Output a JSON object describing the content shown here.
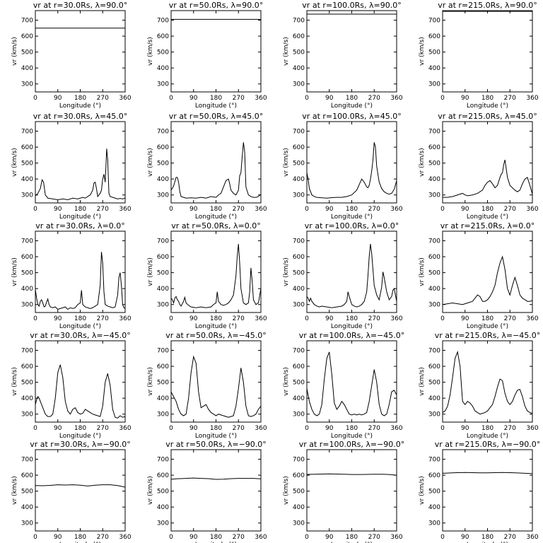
{
  "figure": {
    "xlabel": "Longitude (°)",
    "ylabel": "vr (km/s)",
    "xlim": [
      0,
      360
    ],
    "ylim": [
      250,
      760
    ],
    "xticks": [
      0,
      90,
      180,
      270,
      360
    ],
    "yticks": [
      300,
      400,
      500,
      600,
      700
    ],
    "grid": false,
    "line_color": "#000000"
  },
  "chart_data": [
    {
      "type": "line",
      "title": "vr at r=30.0Rs, λ=90.0°",
      "xlabel": "Longitude (°)",
      "ylabel": "vr (km/s)",
      "xlim": [
        0,
        360
      ],
      "ylim": [
        250,
        760
      ],
      "x": [
        0,
        360
      ],
      "y": [
        650,
        650
      ]
    },
    {
      "type": "line",
      "title": "vr at r=50.0Rs, λ=90.0°",
      "xlabel": "Longitude (°)",
      "ylabel": "vr (km/s)",
      "xlim": [
        0,
        360
      ],
      "ylim": [
        250,
        760
      ],
      "x": [
        0,
        360
      ],
      "y": [
        705,
        705
      ]
    },
    {
      "type": "line",
      "title": "vr at r=100.0Rs, λ=90.0°",
      "xlabel": "Longitude (°)",
      "ylabel": "vr (km/s)",
      "xlim": [
        0,
        360
      ],
      "ylim": [
        250,
        760
      ],
      "x": [
        0,
        360
      ],
      "y": [
        738,
        738
      ]
    },
    {
      "type": "line",
      "title": "vr at r=215.0Rs, λ=90.0°",
      "xlabel": "Longitude (°)",
      "ylabel": "vr (km/s)",
      "xlim": [
        0,
        360
      ],
      "ylim": [
        250,
        760
      ],
      "x": [
        0,
        360
      ],
      "y": [
        755,
        755
      ]
    },
    {
      "type": "line",
      "title": "vr at r=30.0Rs, λ=45.0°",
      "xlabel": "Longitude (°)",
      "ylabel": "vr (km/s)",
      "xlim": [
        0,
        360
      ],
      "ylim": [
        250,
        760
      ],
      "x": [
        0,
        10,
        20,
        27,
        33,
        40,
        50,
        70,
        90,
        110,
        130,
        150,
        170,
        190,
        200,
        210,
        220,
        230,
        235,
        240,
        245,
        250,
        255,
        260,
        265,
        270,
        275,
        280,
        283,
        286,
        290,
        295,
        300,
        310,
        320,
        330,
        340,
        350,
        360
      ],
      "y": [
        295,
        310,
        340,
        395,
        380,
        300,
        280,
        275,
        270,
        275,
        270,
        280,
        275,
        285,
        280,
        290,
        300,
        330,
        375,
        380,
        340,
        290,
        300,
        310,
        330,
        400,
        430,
        380,
        480,
        590,
        520,
        310,
        290,
        285,
        280,
        275,
        278,
        275,
        280
      ]
    },
    {
      "type": "line",
      "title": "vr at r=50.0Rs, λ=45.0°",
      "xlabel": "Longitude (°)",
      "ylabel": "vr (km/s)",
      "xlim": [
        0,
        360
      ],
      "ylim": [
        250,
        760
      ],
      "x": [
        0,
        10,
        20,
        25,
        30,
        35,
        40,
        50,
        60,
        80,
        100,
        120,
        140,
        160,
        180,
        190,
        200,
        210,
        220,
        230,
        235,
        240,
        250,
        260,
        270,
        275,
        280,
        285,
        290,
        295,
        300,
        310,
        320,
        330,
        340,
        350,
        360
      ],
      "y": [
        330,
        355,
        410,
        410,
        380,
        320,
        290,
        285,
        280,
        282,
        280,
        285,
        280,
        290,
        285,
        300,
        310,
        350,
        390,
        400,
        370,
        330,
        310,
        300,
        330,
        420,
        440,
        540,
        630,
        570,
        350,
        300,
        290,
        285,
        285,
        290,
        305
      ]
    },
    {
      "type": "line",
      "title": "vr at r=100.0Rs, λ=45.0°",
      "xlabel": "Longitude (°)",
      "ylabel": "vr (km/s)",
      "xlim": [
        0,
        360
      ],
      "ylim": [
        250,
        760
      ],
      "x": [
        0,
        5,
        10,
        20,
        30,
        40,
        60,
        80,
        100,
        120,
        140,
        160,
        180,
        200,
        210,
        220,
        230,
        240,
        245,
        250,
        255,
        260,
        265,
        270,
        275,
        280,
        290,
        300,
        310,
        320,
        330,
        340,
        350,
        360
      ],
      "y": [
        440,
        400,
        340,
        300,
        290,
        285,
        282,
        280,
        283,
        285,
        285,
        290,
        300,
        330,
        365,
        400,
        380,
        350,
        345,
        360,
        400,
        450,
        520,
        630,
        600,
        480,
        380,
        340,
        320,
        310,
        305,
        310,
        335,
        390
      ]
    },
    {
      "type": "line",
      "title": "vr at r=215.0Rs, λ=45.0°",
      "xlabel": "Longitude (°)",
      "ylabel": "vr (km/s)",
      "xlim": [
        0,
        360
      ],
      "ylim": [
        250,
        760
      ],
      "x": [
        0,
        20,
        40,
        60,
        80,
        90,
        100,
        120,
        140,
        160,
        170,
        180,
        190,
        200,
        210,
        220,
        230,
        235,
        240,
        245,
        250,
        260,
        270,
        280,
        290,
        300,
        310,
        320,
        330,
        340,
        350,
        360
      ],
      "y": [
        285,
        285,
        290,
        300,
        310,
        300,
        295,
        300,
        310,
        330,
        360,
        380,
        390,
        370,
        345,
        360,
        410,
        430,
        440,
        490,
        520,
        410,
        360,
        345,
        330,
        320,
        330,
        370,
        400,
        410,
        360,
        305
      ]
    },
    {
      "type": "line",
      "title": "vr at r=30.0Rs, λ=0.0°",
      "xlabel": "Longitude (°)",
      "ylabel": "vr (km/s)",
      "xlim": [
        0,
        360
      ],
      "ylim": [
        250,
        760
      ],
      "x": [
        0,
        5,
        10,
        15,
        20,
        25,
        30,
        35,
        40,
        45,
        50,
        55,
        60,
        70,
        80,
        90,
        100,
        110,
        120,
        130,
        140,
        150,
        160,
        170,
        180,
        185,
        190,
        200,
        210,
        220,
        230,
        240,
        250,
        260,
        265,
        270,
        275,
        280,
        290,
        300,
        310,
        320,
        330,
        335,
        340,
        345,
        350,
        355,
        360
      ],
      "y": [
        395,
        340,
        300,
        290,
        320,
        330,
        310,
        285,
        290,
        315,
        335,
        300,
        285,
        280,
        285,
        270,
        275,
        280,
        285,
        270,
        280,
        275,
        280,
        300,
        310,
        390,
        300,
        285,
        280,
        275,
        280,
        290,
        300,
        420,
        630,
        560,
        380,
        300,
        290,
        285,
        280,
        285,
        360,
        470,
        500,
        420,
        300,
        280,
        275
      ]
    },
    {
      "type": "line",
      "title": "vr at r=50.0Rs, λ=0.0°",
      "xlabel": "Longitude (°)",
      "ylabel": "vr (km/s)",
      "xlim": [
        0,
        360
      ],
      "ylim": [
        250,
        760
      ],
      "x": [
        0,
        5,
        10,
        15,
        20,
        25,
        30,
        35,
        40,
        50,
        55,
        60,
        70,
        80,
        100,
        120,
        140,
        160,
        170,
        180,
        185,
        190,
        200,
        210,
        220,
        230,
        240,
        250,
        260,
        265,
        270,
        275,
        280,
        290,
        300,
        310,
        315,
        320,
        325,
        330,
        340,
        350,
        360
      ],
      "y": [
        340,
        330,
        310,
        340,
        350,
        330,
        320,
        300,
        290,
        320,
        345,
        310,
        295,
        285,
        280,
        285,
        280,
        285,
        300,
        310,
        380,
        320,
        300,
        295,
        300,
        310,
        330,
        360,
        480,
        600,
        680,
        560,
        400,
        310,
        300,
        310,
        380,
        530,
        450,
        330,
        300,
        310,
        400
      ]
    },
    {
      "type": "line",
      "title": "vr at r=100.0Rs, λ=0.0°",
      "xlabel": "Longitude (°)",
      "ylabel": "vr (km/s)",
      "xlim": [
        0,
        360
      ],
      "ylim": [
        250,
        760
      ],
      "x": [
        0,
        5,
        10,
        15,
        20,
        30,
        40,
        50,
        60,
        80,
        100,
        120,
        140,
        150,
        160,
        165,
        170,
        180,
        190,
        200,
        210,
        220,
        230,
        240,
        245,
        250,
        255,
        260,
        270,
        280,
        290,
        300,
        305,
        310,
        320,
        330,
        340,
        345,
        350,
        355,
        360
      ],
      "y": [
        350,
        340,
        320,
        340,
        320,
        300,
        290,
        285,
        290,
        285,
        280,
        285,
        290,
        300,
        320,
        380,
        350,
        300,
        290,
        285,
        290,
        300,
        320,
        380,
        480,
        600,
        680,
        620,
        420,
        360,
        330,
        410,
        505,
        470,
        380,
        330,
        350,
        390,
        400,
        360,
        320
      ]
    },
    {
      "type": "line",
      "title": "vr at r=215.0Rs, λ=0.0°",
      "xlabel": "Longitude (°)",
      "ylabel": "vr (km/s)",
      "xlim": [
        0,
        360
      ],
      "ylim": [
        250,
        760
      ],
      "x": [
        0,
        20,
        40,
        60,
        80,
        100,
        120,
        130,
        140,
        150,
        160,
        170,
        180,
        190,
        200,
        210,
        220,
        230,
        240,
        250,
        260,
        270,
        280,
        290,
        300,
        310,
        320,
        330,
        340,
        350,
        360
      ],
      "y": [
        300,
        305,
        310,
        305,
        300,
        310,
        320,
        340,
        360,
        350,
        320,
        320,
        330,
        350,
        380,
        420,
        500,
        560,
        600,
        520,
        400,
        360,
        420,
        470,
        420,
        360,
        340,
        330,
        320,
        320,
        325
      ]
    },
    {
      "type": "line",
      "title": "vr at r=30.0Rs, λ=−45.0°",
      "xlabel": "Longitude (°)",
      "ylabel": "vr (km/s)",
      "xlim": [
        0,
        360
      ],
      "ylim": [
        250,
        760
      ],
      "x": [
        0,
        5,
        10,
        15,
        20,
        25,
        30,
        40,
        50,
        60,
        70,
        80,
        90,
        100,
        110,
        120,
        130,
        140,
        150,
        160,
        170,
        180,
        190,
        200,
        210,
        220,
        230,
        240,
        250,
        260,
        270,
        280,
        290,
        300,
        310,
        320,
        330,
        340,
        350,
        360
      ],
      "y": [
        360,
        390,
        410,
        400,
        380,
        360,
        340,
        300,
        285,
        285,
        300,
        400,
        560,
        610,
        530,
        380,
        320,
        300,
        330,
        340,
        310,
        300,
        305,
        330,
        320,
        310,
        300,
        295,
        290,
        285,
        350,
        500,
        555,
        480,
        330,
        280,
        275,
        290,
        280,
        285
      ]
    },
    {
      "type": "line",
      "title": "vr at r=50.0Rs, λ=−45.0°",
      "xlabel": "Longitude (°)",
      "ylabel": "vr (km/s)",
      "xlim": [
        0,
        360
      ],
      "ylim": [
        250,
        760
      ],
      "x": [
        0,
        10,
        20,
        30,
        40,
        50,
        60,
        70,
        80,
        90,
        100,
        110,
        120,
        130,
        140,
        150,
        160,
        170,
        180,
        190,
        200,
        210,
        220,
        230,
        240,
        250,
        260,
        270,
        280,
        290,
        300,
        310,
        320,
        330,
        340,
        350,
        360
      ],
      "y": [
        440,
        410,
        380,
        330,
        300,
        290,
        300,
        400,
        560,
        660,
        620,
        440,
        340,
        350,
        360,
        330,
        310,
        300,
        290,
        300,
        295,
        290,
        285,
        280,
        285,
        290,
        350,
        460,
        590,
        500,
        350,
        290,
        285,
        290,
        300,
        330,
        350
      ]
    },
    {
      "type": "line",
      "title": "vr at r=100.0Rs, λ=−45.0°",
      "xlabel": "Longitude (°)",
      "ylabel": "vr (km/s)",
      "xlim": [
        0,
        360
      ],
      "ylim": [
        250,
        760
      ],
      "x": [
        0,
        10,
        20,
        30,
        40,
        50,
        60,
        70,
        80,
        90,
        100,
        110,
        120,
        130,
        140,
        150,
        160,
        170,
        180,
        190,
        200,
        210,
        220,
        230,
        240,
        250,
        260,
        270,
        280,
        290,
        300,
        310,
        320,
        330,
        340,
        350,
        360
      ],
      "y": [
        460,
        380,
        330,
        300,
        290,
        300,
        360,
        520,
        650,
        690,
        550,
        370,
        330,
        350,
        380,
        360,
        330,
        300,
        295,
        300,
        295,
        300,
        295,
        300,
        310,
        380,
        480,
        580,
        500,
        360,
        300,
        290,
        300,
        360,
        440,
        450,
        420
      ]
    },
    {
      "type": "line",
      "title": "vr at r=215.0Rs, λ=−45.0°",
      "xlabel": "Longitude (°)",
      "ylabel": "vr (km/s)",
      "xlim": [
        0,
        360
      ],
      "ylim": [
        250,
        760
      ],
      "x": [
        0,
        10,
        20,
        30,
        40,
        50,
        60,
        70,
        80,
        90,
        100,
        110,
        120,
        130,
        140,
        150,
        160,
        170,
        180,
        190,
        200,
        210,
        220,
        230,
        240,
        250,
        260,
        270,
        280,
        290,
        300,
        310,
        320,
        330,
        340,
        350,
        360
      ],
      "y": [
        310,
        320,
        350,
        420,
        530,
        650,
        690,
        600,
        380,
        360,
        380,
        370,
        350,
        320,
        310,
        300,
        305,
        310,
        320,
        340,
        360,
        410,
        470,
        520,
        510,
        430,
        380,
        360,
        380,
        420,
        450,
        455,
        410,
        350,
        320,
        310,
        305
      ]
    },
    {
      "type": "line",
      "title": "vr at r=30.0Rs, λ=−90.0°",
      "xlabel": "Longitude (°)",
      "ylabel": "vr (km/s)",
      "xlim": [
        0,
        360
      ],
      "ylim": [
        250,
        760
      ],
      "x": [
        0,
        30,
        60,
        90,
        120,
        150,
        180,
        210,
        240,
        270,
        300,
        330,
        360
      ],
      "y": [
        535,
        534,
        536,
        540,
        538,
        540,
        537,
        532,
        537,
        540,
        540,
        535,
        525
      ]
    },
    {
      "type": "line",
      "title": "vr at r=50.0Rs, λ=−90.0°",
      "xlabel": "Longitude (°)",
      "ylabel": "vr (km/s)",
      "xlim": [
        0,
        360
      ],
      "ylim": [
        250,
        760
      ],
      "x": [
        0,
        30,
        60,
        90,
        120,
        150,
        180,
        210,
        240,
        270,
        300,
        330,
        360
      ],
      "y": [
        575,
        578,
        580,
        582,
        580,
        578,
        574,
        575,
        578,
        580,
        580,
        580,
        577
      ]
    },
    {
      "type": "line",
      "title": "vr at r=100.0Rs, λ=−90.0°",
      "xlabel": "Longitude (°)",
      "ylabel": "vr (km/s)",
      "xlim": [
        0,
        360
      ],
      "ylim": [
        250,
        760
      ],
      "x": [
        0,
        30,
        60,
        90,
        120,
        150,
        180,
        210,
        240,
        270,
        300,
        330,
        360
      ],
      "y": [
        605,
        606,
        607,
        608,
        607,
        606,
        604,
        604,
        605,
        606,
        606,
        604,
        600
      ]
    },
    {
      "type": "line",
      "title": "vr at r=215.0Rs, λ=−90.0°",
      "xlabel": "Longitude (°)",
      "ylabel": "vr (km/s)",
      "xlim": [
        0,
        360
      ],
      "ylim": [
        250,
        760
      ],
      "x": [
        0,
        30,
        60,
        90,
        120,
        150,
        180,
        210,
        240,
        270,
        300,
        330,
        360
      ],
      "y": [
        612,
        614,
        616,
        617,
        616,
        615,
        615,
        616,
        617,
        616,
        614,
        612,
        610
      ]
    }
  ]
}
